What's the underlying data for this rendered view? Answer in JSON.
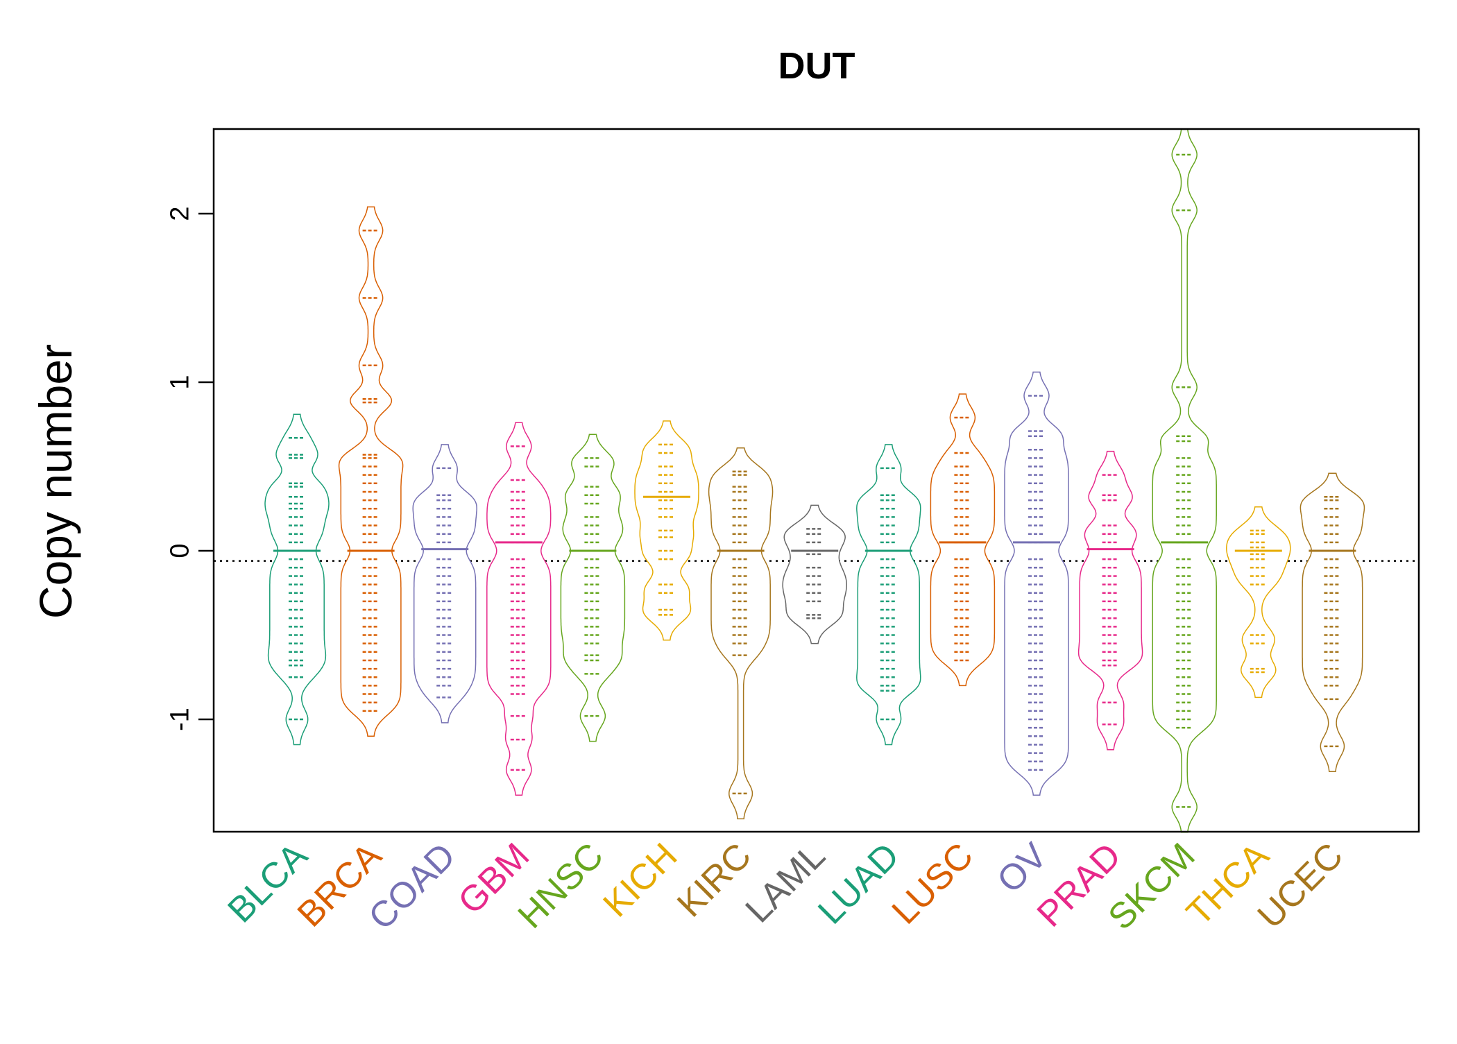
{
  "chart_data": {
    "type": "beanplot",
    "title": "DUT",
    "ylabel": "Copy number",
    "xlabel": "",
    "ylim": [
      -1.67,
      2.5
    ],
    "yticks": [
      -1,
      0,
      1,
      2
    ],
    "ytick_labels": [
      "-1",
      "0",
      "1",
      "2"
    ],
    "reference_line": -0.06,
    "grid": false,
    "legend": "none",
    "groups": [
      {
        "name": "BLCA",
        "color": "#1b9e77",
        "median": 0.0,
        "values": [
          0.67,
          0.57,
          0.55,
          0.4,
          0.38,
          0.32,
          0.28,
          0.25,
          0.2,
          0.15,
          0.1,
          0.05,
          -0.05,
          -0.1,
          -0.15,
          -0.2,
          -0.25,
          -0.3,
          -0.35,
          -0.4,
          -0.45,
          -0.5,
          -0.55,
          -0.6,
          -0.65,
          -0.68,
          -0.75,
          -1.0
        ]
      },
      {
        "name": "BRCA",
        "color": "#d95f02",
        "median": 0.0,
        "values": [
          1.9,
          1.5,
          1.1,
          0.9,
          0.88,
          0.57,
          0.55,
          0.5,
          0.45,
          0.4,
          0.35,
          0.3,
          0.25,
          0.2,
          0.15,
          0.1,
          0.05,
          -0.05,
          -0.1,
          -0.15,
          -0.2,
          -0.25,
          -0.3,
          -0.35,
          -0.4,
          -0.45,
          -0.5,
          -0.55,
          -0.6,
          -0.65,
          -0.7,
          -0.75,
          -0.8,
          -0.85,
          -0.9,
          -0.95
        ]
      },
      {
        "name": "COAD",
        "color": "#7570b3",
        "median": 0.01,
        "values": [
          0.49,
          0.33,
          0.3,
          0.25,
          0.2,
          0.15,
          0.1,
          0.05,
          -0.05,
          -0.1,
          -0.15,
          -0.2,
          -0.25,
          -0.3,
          -0.35,
          -0.4,
          -0.45,
          -0.5,
          -0.55,
          -0.6,
          -0.65,
          -0.7,
          -0.75,
          -0.8,
          -0.87
        ]
      },
      {
        "name": "GBM",
        "color": "#e7298a",
        "median": 0.05,
        "values": [
          0.62,
          0.42,
          0.35,
          0.3,
          0.25,
          0.2,
          0.15,
          0.1,
          0.05,
          -0.05,
          -0.1,
          -0.15,
          -0.2,
          -0.25,
          -0.3,
          -0.35,
          -0.4,
          -0.45,
          -0.5,
          -0.55,
          -0.6,
          -0.65,
          -0.7,
          -0.75,
          -0.8,
          -0.85,
          -0.98,
          -1.12,
          -1.3
        ]
      },
      {
        "name": "HNSC",
        "color": "#66a61e",
        "median": 0.0,
        "values": [
          0.55,
          0.5,
          0.38,
          0.33,
          0.28,
          0.2,
          0.15,
          0.1,
          0.05,
          -0.05,
          -0.1,
          -0.15,
          -0.2,
          -0.25,
          -0.3,
          -0.35,
          -0.4,
          -0.45,
          -0.5,
          -0.55,
          -0.62,
          -0.65,
          -0.73,
          -0.98
        ]
      },
      {
        "name": "KICH",
        "color": "#e6ab02",
        "median": 0.32,
        "values": [
          0.63,
          0.58,
          0.5,
          0.45,
          0.4,
          0.35,
          0.3,
          0.25,
          0.2,
          0.12,
          0.08,
          0.0,
          -0.05,
          -0.2,
          -0.25,
          -0.35,
          -0.38
        ]
      },
      {
        "name": "KIRC",
        "color": "#a6761d",
        "median": 0.0,
        "values": [
          0.47,
          0.45,
          0.38,
          0.35,
          0.3,
          0.25,
          0.2,
          0.15,
          0.1,
          0.05,
          -0.05,
          -0.1,
          -0.15,
          -0.2,
          -0.25,
          -0.3,
          -0.35,
          -0.4,
          -0.45,
          -0.5,
          -0.55,
          -0.62,
          -1.44
        ]
      },
      {
        "name": "LAML",
        "color": "#666666",
        "median": 0.0,
        "values": [
          0.13,
          0.1,
          0.05,
          -0.02,
          -0.1,
          -0.15,
          -0.2,
          -0.25,
          -0.3,
          -0.38,
          -0.4
        ]
      },
      {
        "name": "LUAD",
        "color": "#1b9e77",
        "median": 0.0,
        "values": [
          0.49,
          0.33,
          0.3,
          0.25,
          0.2,
          0.15,
          0.1,
          0.05,
          -0.05,
          -0.1,
          -0.15,
          -0.2,
          -0.25,
          -0.3,
          -0.35,
          -0.4,
          -0.45,
          -0.5,
          -0.55,
          -0.6,
          -0.65,
          -0.7,
          -0.75,
          -0.8,
          -0.83,
          -1.0
        ]
      },
      {
        "name": "LUSC",
        "color": "#d95f02",
        "median": 0.05,
        "values": [
          0.79,
          0.58,
          0.5,
          0.45,
          0.4,
          0.35,
          0.3,
          0.25,
          0.2,
          0.15,
          0.1,
          0.05,
          -0.05,
          -0.1,
          -0.15,
          -0.2,
          -0.25,
          -0.3,
          -0.35,
          -0.4,
          -0.45,
          -0.5,
          -0.55,
          -0.6,
          -0.65
        ]
      },
      {
        "name": "OV",
        "color": "#7570b3",
        "median": 0.05,
        "values": [
          0.92,
          0.71,
          0.68,
          0.6,
          0.55,
          0.5,
          0.45,
          0.4,
          0.35,
          0.3,
          0.25,
          0.2,
          0.15,
          0.1,
          0.05,
          -0.05,
          -0.1,
          -0.15,
          -0.2,
          -0.25,
          -0.3,
          -0.35,
          -0.4,
          -0.45,
          -0.5,
          -0.55,
          -0.6,
          -0.65,
          -0.7,
          -0.75,
          -0.8,
          -0.85,
          -0.9,
          -0.95,
          -1.0,
          -1.05,
          -1.1,
          -1.15,
          -1.2,
          -1.25,
          -1.3
        ]
      },
      {
        "name": "PRAD",
        "color": "#e7298a",
        "median": 0.01,
        "values": [
          0.45,
          0.33,
          0.3,
          0.15,
          0.1,
          0.05,
          -0.05,
          -0.1,
          -0.15,
          -0.2,
          -0.25,
          -0.3,
          -0.35,
          -0.4,
          -0.45,
          -0.5,
          -0.55,
          -0.6,
          -0.65,
          -0.68,
          -0.9,
          -1.03
        ]
      },
      {
        "name": "SKCM",
        "color": "#66a61e",
        "median": 0.05,
        "values": [
          2.35,
          2.02,
          0.97,
          0.68,
          0.65,
          0.55,
          0.5,
          0.45,
          0.4,
          0.35,
          0.3,
          0.25,
          0.2,
          0.15,
          0.1,
          0.05,
          -0.05,
          -0.1,
          -0.15,
          -0.2,
          -0.25,
          -0.3,
          -0.35,
          -0.4,
          -0.45,
          -0.5,
          -0.55,
          -0.6,
          -0.65,
          -0.7,
          -0.75,
          -0.8,
          -0.85,
          -0.9,
          -0.95,
          -1.0,
          -1.05,
          -1.52
        ]
      },
      {
        "name": "THCA",
        "color": "#e6ab02",
        "median": 0.0,
        "values": [
          0.12,
          0.1,
          0.05,
          0.02,
          -0.02,
          -0.05,
          -0.1,
          -0.15,
          -0.2,
          -0.5,
          -0.55,
          -0.7,
          -0.72
        ]
      },
      {
        "name": "UCEC",
        "color": "#a6761d",
        "median": 0.0,
        "values": [
          0.32,
          0.3,
          0.25,
          0.2,
          0.15,
          0.1,
          0.05,
          -0.05,
          -0.1,
          -0.15,
          -0.2,
          -0.25,
          -0.3,
          -0.35,
          -0.4,
          -0.45,
          -0.5,
          -0.55,
          -0.6,
          -0.65,
          -0.7,
          -0.75,
          -0.8,
          -0.88,
          -1.16
        ]
      }
    ]
  }
}
